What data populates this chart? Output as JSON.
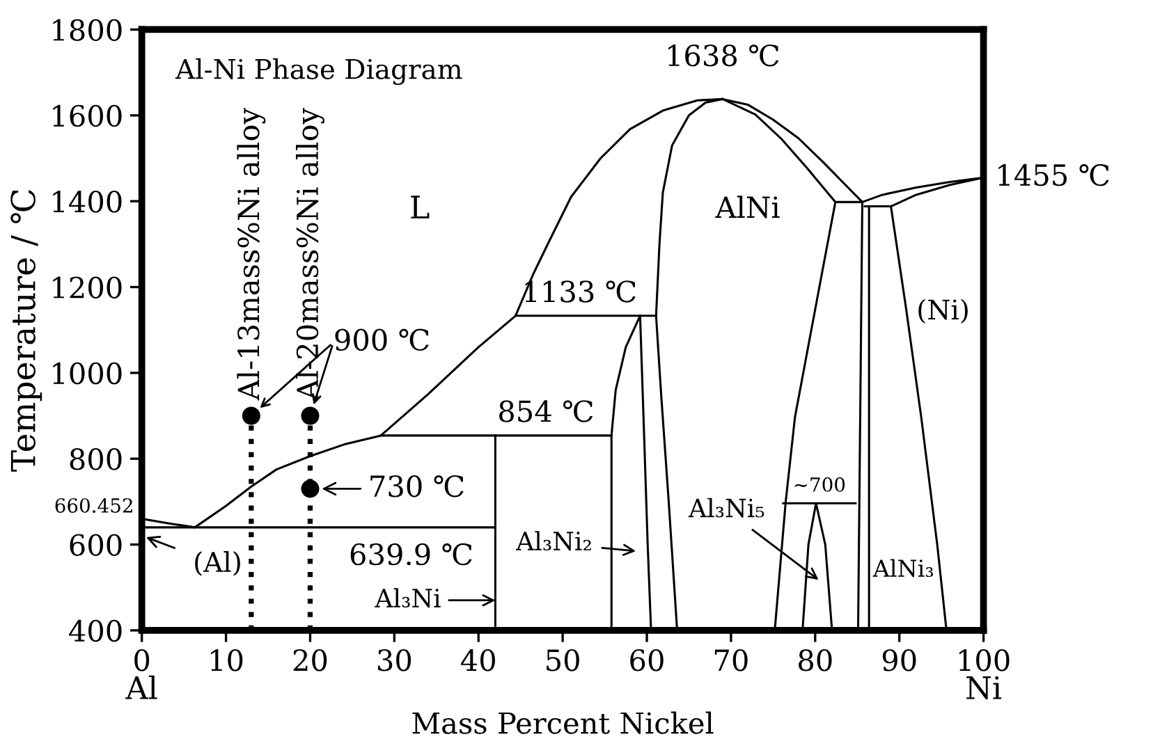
{
  "chart_data": {
    "type": "line",
    "title": "Al-Ni Phase Diagram",
    "xlabel": "Mass Percent Nickel",
    "ylabel": "Temperature / ℃",
    "xlim": [
      0,
      100
    ],
    "ylim": [
      400,
      1800
    ],
    "xticks": [
      0,
      10,
      20,
      30,
      40,
      50,
      60,
      70,
      80,
      90,
      100
    ],
    "yticks": [
      400,
      600,
      800,
      1000,
      1200,
      1400,
      1600,
      1800
    ],
    "grid": false,
    "marker": "none",
    "line_style": "solid",
    "series": [
      {
        "color": "#000000",
        "x": [
          0,
          3,
          6.3,
          10,
          13,
          16,
          20,
          24,
          28.4,
          34,
          40,
          44.4,
          46.5,
          48.3,
          51,
          54.5,
          58,
          62,
          66,
          69,
          72,
          75,
          78,
          81,
          83.5,
          85.6,
          88,
          92,
          96,
          100,
          96,
          92,
          89,
          85.9
        ],
        "values": [
          660,
          650,
          640,
          690,
          735,
          775,
          806,
          833,
          854,
          950,
          1060,
          1133,
          1230,
          1303,
          1410,
          1500,
          1568,
          1612,
          1635,
          1638,
          1625,
          1590,
          1547,
          1490,
          1440,
          1398,
          1415,
          1432,
          1445,
          1455,
          1438,
          1415,
          1388,
          1388
        ]
      },
      {
        "color": "#000000",
        "x": [
          69,
          72.9,
          76,
          79,
          82.4
        ],
        "values": [
          1638,
          1602,
          1545,
          1478,
          1398
        ]
      },
      {
        "color": "#000000",
        "x": [
          82.4,
          85.6
        ],
        "values": [
          1398,
          1398
        ]
      },
      {
        "color": "#000000",
        "x": [
          82.4,
          80.5,
          77.6,
          76.5,
          75.2
        ],
        "values": [
          1398,
          1200,
          897,
          700,
          400
        ]
      },
      {
        "color": "#000000",
        "x": [
          85.6,
          85.1
        ],
        "values": [
          1398,
          400
        ]
      },
      {
        "color": "#000000",
        "x": [
          86.4,
          86.4
        ],
        "values": [
          1388,
          400
        ]
      },
      {
        "color": "#000000",
        "x": [
          89,
          90.8,
          92.6,
          94.5,
          95.6
        ],
        "values": [
          1388,
          1150,
          897,
          600,
          400
        ]
      },
      {
        "color": "#000000",
        "x": [
          76.2,
          84.8
        ],
        "values": [
          696,
          696
        ]
      },
      {
        "color": "#000000",
        "x": [
          78.5,
          79.2,
          80.1,
          81.2,
          82.0
        ],
        "values": [
          400,
          600,
          696,
          600,
          400
        ]
      },
      {
        "color": "#000000",
        "x": [
          28.4,
          55.8
        ],
        "values": [
          854,
          854
        ]
      },
      {
        "color": "#000000",
        "x": [
          42,
          42
        ],
        "values": [
          854,
          400
        ]
      },
      {
        "color": "#000000",
        "x": [
          0,
          42
        ],
        "values": [
          640,
          640
        ]
      },
      {
        "color": "#000000",
        "x": [
          55.8,
          55.8,
          56.3,
          57.5,
          59.2
        ],
        "values": [
          400,
          854,
          960,
          1060,
          1133
        ]
      },
      {
        "color": "#000000",
        "x": [
          59.2,
          59.6,
          60.1,
          60.5
        ],
        "values": [
          1133,
          900,
          600,
          400
        ]
      },
      {
        "color": "#000000",
        "x": [
          44.4,
          61.1
        ],
        "values": [
          1133,
          1133
        ]
      },
      {
        "color": "#000000",
        "x": [
          63.6,
          62.6,
          61.7,
          61.1,
          61.5,
          61.9,
          63,
          65,
          67,
          69
        ],
        "values": [
          400,
          700,
          950,
          1133,
          1300,
          1420,
          1530,
          1600,
          1630,
          1638
        ]
      },
      {
        "color": "#000000",
        "x": [
          13,
          13
        ],
        "values": [
          400,
          900
        ],
        "line_style": "dotted"
      },
      {
        "color": "#000000",
        "x": [
          20,
          20
        ],
        "values": [
          400,
          900
        ],
        "line_style": "dotted"
      },
      {
        "color": "#000000",
        "type": "scatter",
        "marker": "circle",
        "x": [
          13,
          20,
          20
        ],
        "values": [
          900,
          900,
          730
        ]
      }
    ],
    "annotations": [
      {
        "text": "1638 ℃",
        "x": 69,
        "y": 1638
      },
      {
        "text": "1455 ℃",
        "x": 100,
        "y": 1455
      },
      {
        "text": "1133 ℃",
        "x": 52,
        "y": 1133
      },
      {
        "text": "854 ℃",
        "x": 48,
        "y": 854
      },
      {
        "text": "639.9 ℃",
        "x": 32,
        "y": 640
      },
      {
        "text": "660.452",
        "x": 0,
        "y": 660
      },
      {
        "text": "~700",
        "x": 80.5,
        "y": 696
      },
      {
        "text": "900 ℃",
        "x": 20,
        "y": 900
      },
      {
        "text": "730 ℃",
        "x": 20,
        "y": 730
      },
      {
        "text": "Al-13mass%Ni alloy",
        "x": 13,
        "y": 900
      },
      {
        "text": "Al-20mass%Ni alloy",
        "x": 20,
        "y": 900
      },
      "L",
      "AlNi",
      "(Ni)",
      "Al₃Ni₂",
      "Al₃Ni₅",
      "AlNi₃",
      {
        "text": "Al₃Ni",
        "x": 42,
        "y": 470
      },
      "(Al)",
      "Al",
      "Ni"
    ]
  }
}
